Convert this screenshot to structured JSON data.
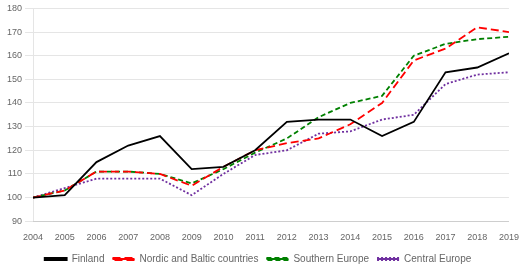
{
  "chart_data": {
    "type": "line",
    "x": [
      2004,
      2005,
      2006,
      2007,
      2008,
      2009,
      2010,
      2011,
      2012,
      2013,
      2014,
      2015,
      2016,
      2017,
      2018,
      2019
    ],
    "series": [
      {
        "name": "Finland",
        "color": "#000000",
        "line_style": "solid",
        "values": [
          100,
          101,
          115,
          122,
          126,
          112,
          113,
          120,
          132,
          133,
          133,
          126,
          132,
          153,
          155,
          161
        ]
      },
      {
        "name": "Nordic and Baltic countries",
        "color": "#ff0000",
        "line_style": "longdash",
        "values": [
          100,
          103,
          111,
          111,
          110,
          105,
          113,
          120,
          123,
          125,
          131,
          140,
          158,
          163,
          172,
          170
        ]
      },
      {
        "name": "Southern Europe",
        "color": "#008000",
        "line_style": "dashed",
        "values": [
          100,
          103,
          111,
          111,
          110,
          106,
          112,
          119,
          125,
          134,
          140,
          143,
          160,
          165,
          167,
          168
        ]
      },
      {
        "name": "Central Europe",
        "color": "#7030a0",
        "line_style": "dotted",
        "values": [
          100,
          104,
          108,
          108,
          108,
          101,
          110,
          118,
          120,
          127,
          128,
          133,
          135,
          148,
          152,
          153
        ]
      }
    ],
    "xlim": [
      2004,
      2019
    ],
    "xticks": [
      2004,
      2005,
      2006,
      2007,
      2008,
      2009,
      2010,
      2011,
      2012,
      2013,
      2014,
      2015,
      2016,
      2017,
      2018,
      2019
    ],
    "ylim": [
      90,
      180
    ],
    "yticks": [
      90,
      100,
      110,
      120,
      130,
      140,
      150,
      160,
      170,
      180
    ],
    "grid": "y",
    "legend": "bottom"
  }
}
